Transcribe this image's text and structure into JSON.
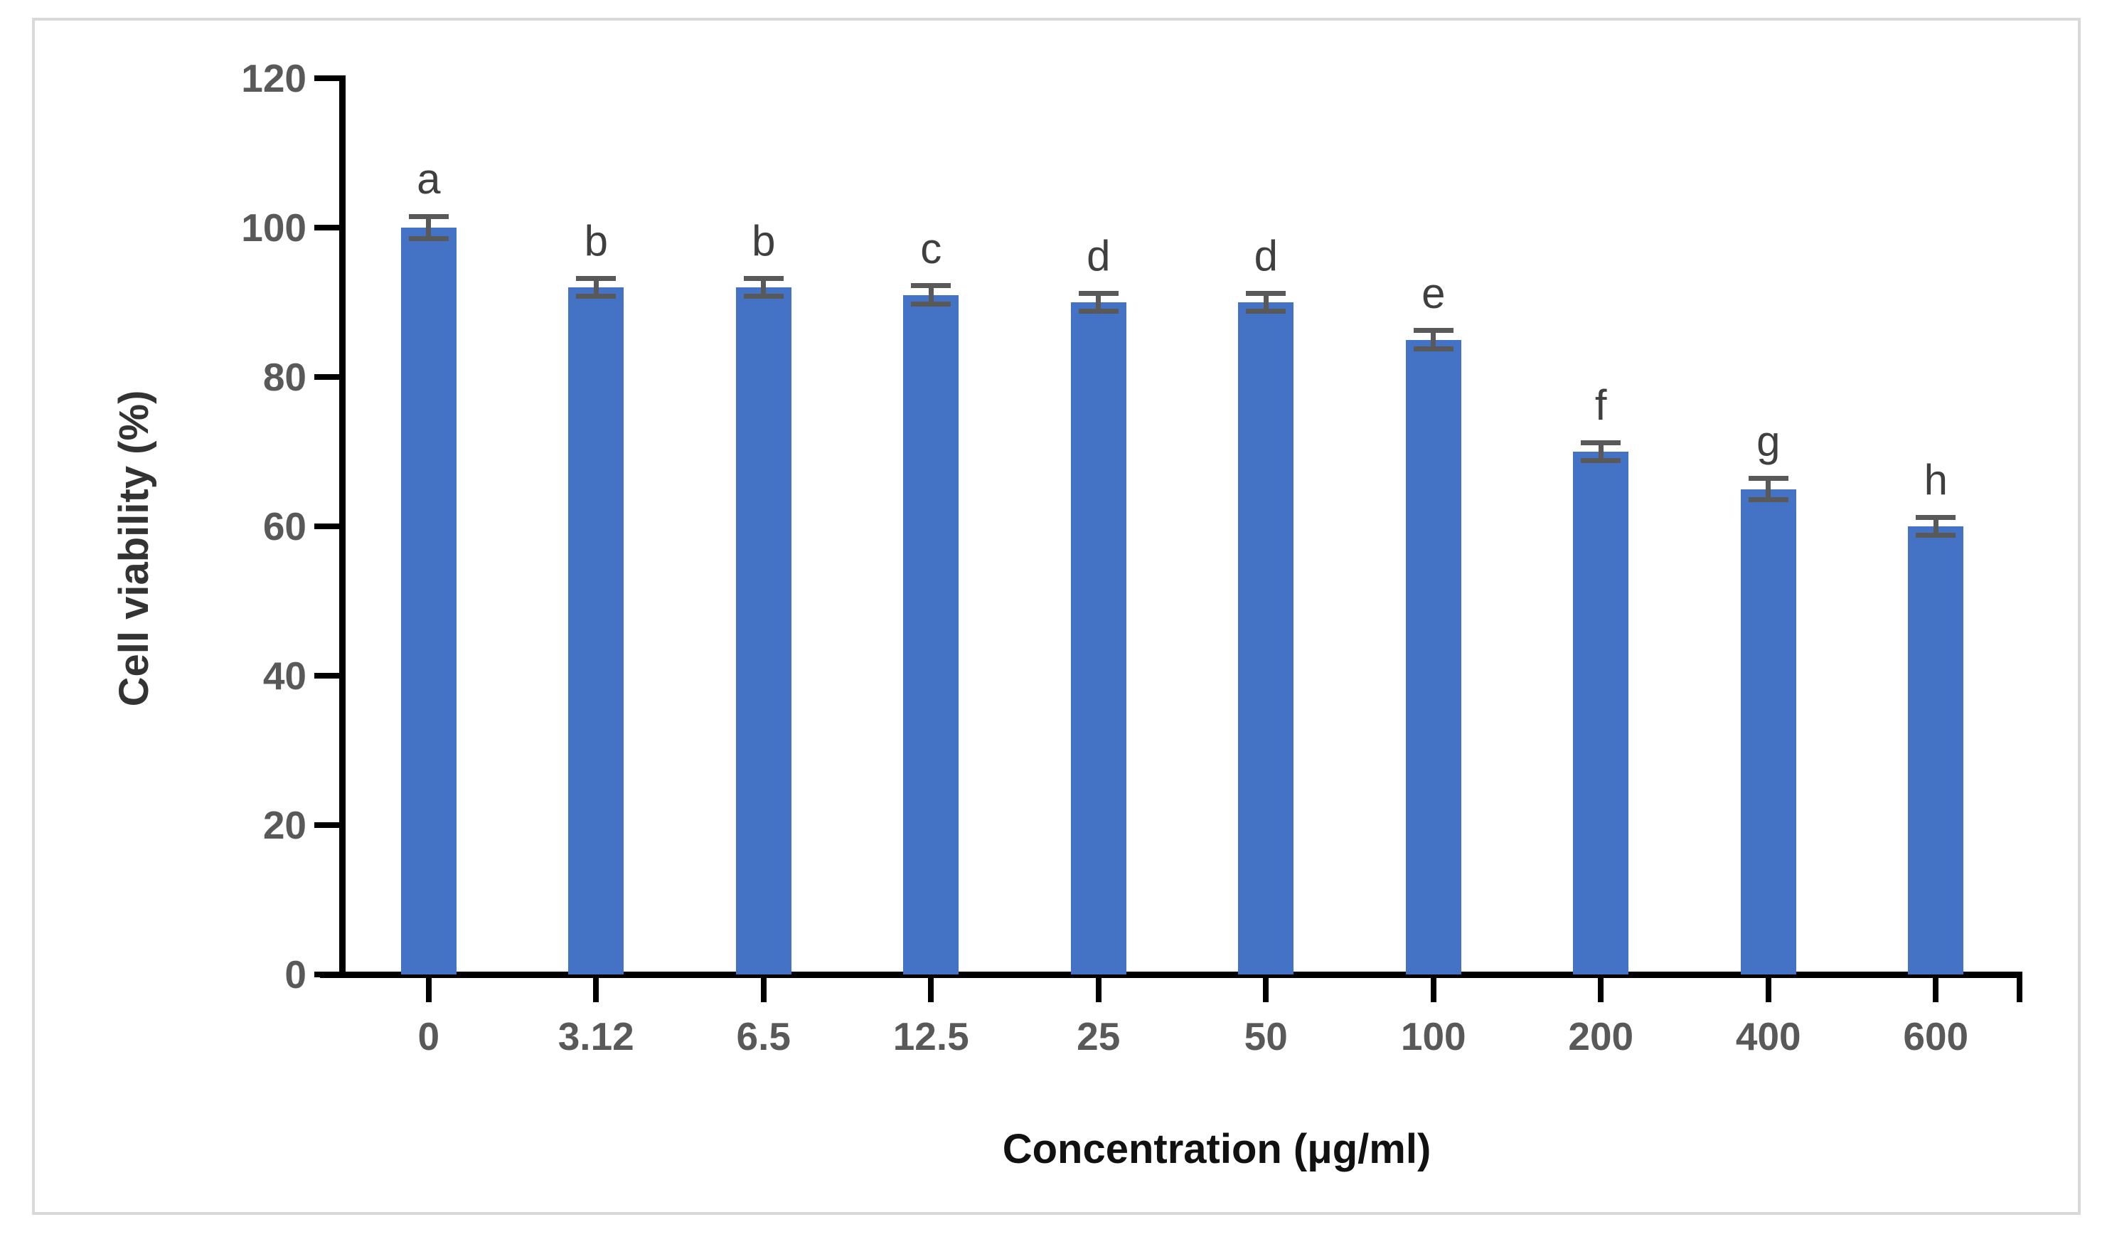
{
  "chart_data": {
    "type": "bar",
    "title": "",
    "xlabel": "Concentration (μg/ml)",
    "ylabel": "Cell viability (%)",
    "categories": [
      "0",
      "3.12",
      "6.5",
      "12.5",
      "25",
      "50",
      "100",
      "200",
      "400",
      "600"
    ],
    "values": [
      100,
      92,
      92,
      91,
      90,
      90,
      85,
      70,
      65,
      60
    ],
    "error_bars": [
      1.5,
      1.2,
      1.2,
      1.2,
      1.2,
      1.2,
      1.2,
      1.2,
      1.4,
      1.2
    ],
    "significance_letters": [
      "a",
      "b",
      "b",
      "c",
      "d",
      "d",
      "e",
      "f",
      "g",
      "h"
    ],
    "yticks": [
      0,
      20,
      40,
      60,
      80,
      100,
      120
    ],
    "ylim": [
      0,
      120
    ],
    "grid": false,
    "legend": false,
    "bar_color": "#4472C4",
    "error_bar_color": "#595959",
    "tick_label_color": "#595959",
    "letter_color": "#3f3f3f",
    "axis_color": "#000000",
    "frame_border_color": "#d9d9d9",
    "background_color": "#ffffff"
  }
}
